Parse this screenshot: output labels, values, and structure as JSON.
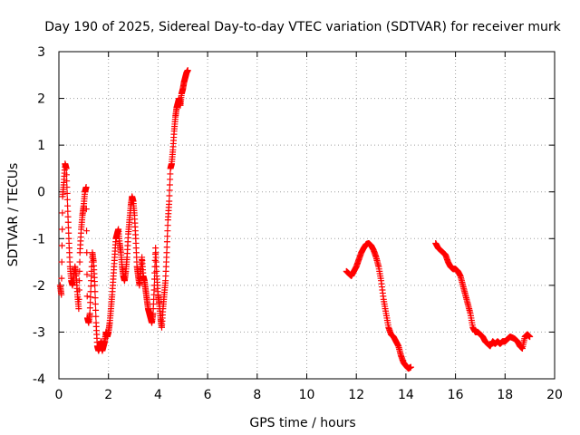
{
  "chart_data": {
    "type": "scatter",
    "title": "Day 190 of 2025, Sidereal Day-to-day VTEC variation (SDTVAR) for receiver murk",
    "xlabel": "GPS time / hours",
    "ylabel": "SDTVAR / TECUs",
    "xlim": [
      0,
      20
    ],
    "ylim": [
      -4,
      3
    ],
    "xticks": [
      "0",
      "2",
      "4",
      "6",
      "8",
      "10",
      "12",
      "14",
      "16",
      "18",
      "20"
    ],
    "yticks": [
      "-4",
      "-3",
      "-2",
      "-1",
      "0",
      "1",
      "2",
      "3"
    ],
    "grid": true,
    "marker": "+",
    "color": "#ff0000",
    "series": [
      {
        "name": "SDTVAR",
        "segments": [
          {
            "x": [
              0.05,
              0.1,
              0.15,
              0.2,
              0.25,
              0.3,
              0.35,
              0.4,
              0.45,
              0.5,
              0.55,
              0.6,
              0.65,
              0.7,
              0.75,
              0.8,
              0.85,
              0.9,
              0.95,
              1.0,
              1.05,
              1.1,
              1.15,
              1.2,
              1.25,
              1.3,
              1.35,
              1.4,
              1.45,
              1.5,
              1.55,
              1.6,
              1.65,
              1.7,
              1.75,
              1.8,
              1.85,
              1.9,
              1.95,
              2.0,
              2.05,
              2.1,
              2.15,
              2.2,
              2.25,
              2.3,
              2.35,
              2.4,
              2.45,
              2.5,
              2.55,
              2.6,
              2.65,
              2.7,
              2.75,
              2.8,
              2.85,
              2.9,
              2.95,
              3.0,
              3.05,
              3.1,
              3.15,
              3.2,
              3.25,
              3.3,
              3.35,
              3.4,
              3.45,
              3.5,
              3.55,
              3.6,
              3.65,
              3.7,
              3.75,
              3.8,
              3.85,
              3.9,
              3.95,
              4.0,
              4.05,
              4.1,
              4.15,
              4.2,
              4.25,
              4.3,
              4.35,
              4.4,
              4.45,
              4.5,
              4.55,
              4.6,
              4.65,
              4.7,
              4.75,
              4.8,
              4.85,
              4.9,
              4.95,
              5.0,
              5.05,
              5.1,
              5.15,
              5.2
            ],
            "y": [
              -2.0,
              -2.2,
              -0.1,
              0.2,
              0.6,
              0.5,
              -0.3,
              -1.0,
              -1.6,
              -1.9,
              -2.0,
              -1.8,
              -1.6,
              -1.8,
              -2.2,
              -2.5,
              -1.3,
              -0.8,
              -0.5,
              -0.3,
              0.0,
              0.1,
              -2.7,
              -2.8,
              -2.6,
              -1.9,
              -1.3,
              -1.5,
              -2.0,
              -2.8,
              -3.3,
              -3.4,
              -3.3,
              -3.2,
              -3.4,
              -3.3,
              -3.2,
              -3.0,
              -3.1,
              -3.0,
              -2.8,
              -2.5,
              -2.2,
              -1.8,
              -1.4,
              -1.0,
              -0.9,
              -0.8,
              -1.1,
              -1.3,
              -1.6,
              -1.8,
              -1.9,
              -1.7,
              -1.4,
              -0.9,
              -0.6,
              -0.3,
              -0.1,
              -0.2,
              -0.5,
              -1.0,
              -1.6,
              -1.8,
              -2.0,
              -1.7,
              -1.4,
              -1.8,
              -1.9,
              -2.1,
              -2.3,
              -2.5,
              -2.6,
              -2.7,
              -2.8,
              -2.6,
              -2.0,
              -1.2,
              -1.8,
              -2.2,
              -2.4,
              -2.7,
              -2.9,
              -2.5,
              -2.2,
              -1.9,
              -1.3,
              -0.6,
              -0.2,
              0.5,
              0.6,
              0.9,
              1.3,
              1.6,
              1.8,
              1.9,
              2.0,
              1.85,
              2.1,
              2.2,
              2.35,
              2.45,
              2.55,
              2.6
            ]
          },
          {
            "x": [
              11.6,
              11.7,
              11.8,
              11.9,
              12.0,
              12.1,
              12.2,
              12.3,
              12.4,
              12.5,
              12.6,
              12.7,
              12.8,
              12.9,
              13.0,
              13.1,
              13.2,
              13.3,
              13.4,
              13.5,
              13.6,
              13.7,
              13.8,
              13.9,
              14.0,
              14.1,
              14.2
            ],
            "y": [
              -1.7,
              -1.75,
              -1.8,
              -1.7,
              -1.6,
              -1.45,
              -1.3,
              -1.2,
              -1.12,
              -1.1,
              -1.15,
              -1.25,
              -1.4,
              -1.6,
              -1.9,
              -2.3,
              -2.6,
              -2.9,
              -3.05,
              -3.1,
              -3.2,
              -3.3,
              -3.5,
              -3.65,
              -3.72,
              -3.78,
              -3.75
            ]
          },
          {
            "x": [
              15.2,
              15.3,
              15.4,
              15.5,
              15.6,
              15.7,
              15.8,
              15.9,
              16.0,
              16.1,
              16.2,
              16.3,
              16.4,
              16.5,
              16.6,
              16.7,
              16.8,
              16.9,
              17.0,
              17.1,
              17.2,
              17.3,
              17.4,
              17.5,
              17.6,
              17.7,
              17.8,
              17.9,
              18.0,
              18.1,
              18.2,
              18.3,
              18.4,
              18.5,
              18.6,
              18.7,
              18.8,
              18.9,
              19.0
            ],
            "y": [
              -1.1,
              -1.2,
              -1.25,
              -1.3,
              -1.35,
              -1.5,
              -1.6,
              -1.65,
              -1.65,
              -1.7,
              -1.8,
              -2.0,
              -2.2,
              -2.4,
              -2.6,
              -2.9,
              -3.0,
              -3.0,
              -3.05,
              -3.1,
              -3.2,
              -3.25,
              -3.3,
              -3.2,
              -3.25,
              -3.2,
              -3.25,
              -3.2,
              -3.2,
              -3.15,
              -3.1,
              -3.12,
              -3.15,
              -3.2,
              -3.3,
              -3.35,
              -3.1,
              -3.05,
              -3.1
            ]
          }
        ]
      }
    ]
  }
}
